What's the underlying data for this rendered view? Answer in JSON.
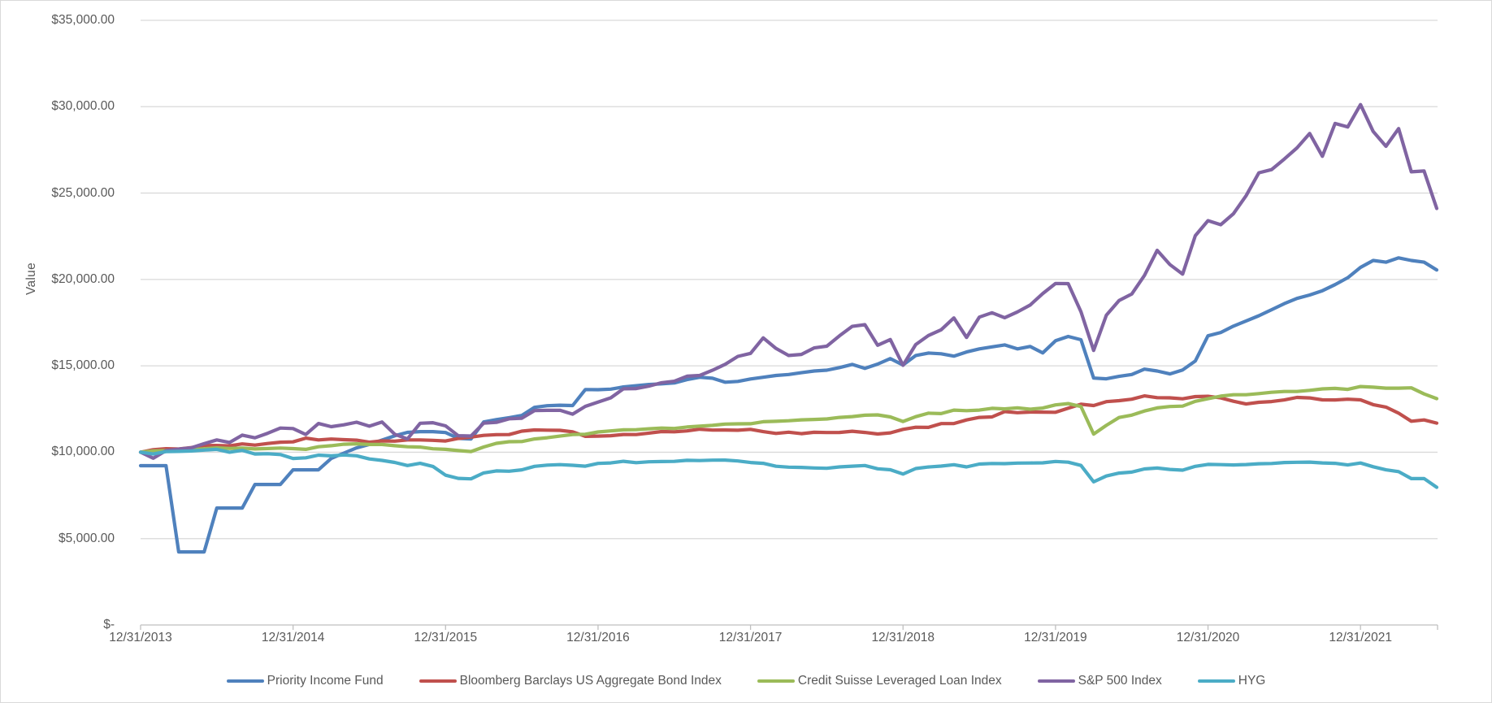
{
  "chart_data": {
    "type": "line",
    "title": "",
    "ylabel": "Value",
    "xlabel": "",
    "grid": true,
    "legend_position": "bottom",
    "ylim": [
      0,
      35000
    ],
    "y_tick_step": 5000,
    "y_tick_labels": [
      "$-",
      "$5,000.00",
      "$10,000.00",
      "$15,000.00",
      "$20,000.00",
      "$25,000.00",
      "$30,000.00",
      "$35,000.00"
    ],
    "x_tick_labels": [
      "12/31/2013",
      "12/31/2014",
      "12/31/2015",
      "12/31/2016",
      "12/31/2017",
      "12/31/2018",
      "12/31/2019",
      "12/31/2020",
      "12/31/2021"
    ],
    "x_frequency": "monthly",
    "x_start": "12/31/2013",
    "x_end": "6/30/2022",
    "colors": {
      "grid": "#d9d9d9",
      "axis": "#bfbfbf",
      "text": "#595959"
    },
    "series": [
      {
        "name": "Priority Income Fund",
        "color": "#4F81BD",
        "values": [
          9220,
          9220,
          9220,
          4230,
          4230,
          4230,
          6770,
          6770,
          6770,
          8135,
          8135,
          8135,
          8980,
          8980,
          8980,
          9640,
          9950,
          10250,
          10450,
          10700,
          10950,
          11150,
          11190,
          11190,
          11140,
          10800,
          10770,
          11750,
          11890,
          12000,
          12130,
          12600,
          12690,
          12720,
          12700,
          13630,
          13620,
          13650,
          13780,
          13850,
          13920,
          13960,
          14010,
          14200,
          14340,
          14280,
          14050,
          14100,
          14240,
          14340,
          14440,
          14500,
          14600,
          14700,
          14750,
          14900,
          15080,
          14850,
          15100,
          15420,
          15050,
          15600,
          15740,
          15700,
          15560,
          15800,
          15980,
          16100,
          16210,
          15980,
          16120,
          15750,
          16450,
          16700,
          16510,
          14290,
          14250,
          14390,
          14500,
          14810,
          14700,
          14530,
          14760,
          15280,
          16740,
          16930,
          17300,
          17600,
          17900,
          18250,
          18600,
          18900,
          19100,
          19350,
          19700,
          20100,
          20700,
          21100,
          21000,
          21250,
          21100,
          21000,
          20550
        ]
      },
      {
        "name": "Bloomberg Barclays US Aggregate Bond Index",
        "color": "#C0504D",
        "values": [
          10000,
          10148,
          10202,
          10185,
          10270,
          10387,
          10392,
          10366,
          10480,
          10409,
          10507,
          10581,
          10597,
          10815,
          10713,
          10763,
          10724,
          10698,
          10582,
          10656,
          10640,
          10712,
          10714,
          10686,
          10652,
          10798,
          10875,
          10975,
          11017,
          11020,
          11218,
          11289,
          11276,
          11269,
          11183,
          10918,
          10934,
          10955,
          11029,
          11023,
          11108,
          11194,
          11183,
          11234,
          11334,
          11280,
          11287,
          11272,
          11324,
          11193,
          11087,
          11158,
          11075,
          11154,
          11140,
          11143,
          11215,
          11143,
          11054,
          11120,
          11325,
          11445,
          11438,
          11658,
          11660,
          11867,
          12016,
          12043,
          12355,
          12289,
          12326,
          12320,
          12312,
          12549,
          12775,
          12700,
          12926,
          12986,
          13068,
          13263,
          13156,
          13149,
          13090,
          13219,
          13237,
          13142,
          12952,
          12791,
          12892,
          12933,
          13024,
          13170,
          13145,
          13031,
          13028,
          13067,
          13033,
          12752,
          12610,
          12260,
          11795,
          11871,
          11685
        ]
      },
      {
        "name": "Credit Suisse Leveraged Loan Index",
        "color": "#9BBB59",
        "values": [
          10000,
          10070,
          10094,
          10119,
          10141,
          10199,
          10253,
          10218,
          10243,
          10189,
          10211,
          10241,
          10206,
          10168,
          10318,
          10380,
          10464,
          10487,
          10446,
          10446,
          10380,
          10316,
          10298,
          10201,
          10167,
          10096,
          10040,
          10304,
          10512,
          10609,
          10618,
          10766,
          10840,
          10935,
          11021,
          11040,
          11171,
          11235,
          11296,
          11305,
          11354,
          11398,
          11377,
          11462,
          11510,
          11555,
          11630,
          11643,
          11646,
          11764,
          11789,
          11822,
          11872,
          11898,
          11927,
          12014,
          12062,
          12141,
          12160,
          12041,
          11779,
          12055,
          12258,
          12235,
          12437,
          12407,
          12436,
          12541,
          12509,
          12569,
          12489,
          12557,
          12741,
          12813,
          12647,
          11052,
          11556,
          12010,
          12148,
          12386,
          12566,
          12645,
          12671,
          12945,
          13095,
          13247,
          13325,
          13325,
          13393,
          13470,
          13516,
          13516,
          13580,
          13667,
          13694,
          13640,
          13802,
          13766,
          13707,
          13707,
          13725,
          13374,
          13100
        ]
      },
      {
        "name": "S&P 500 Index",
        "color": "#8064A2",
        "values": [
          10000,
          9654,
          10096,
          10181,
          10256,
          10497,
          10714,
          10566,
          10989,
          10835,
          11099,
          11398,
          11369,
          11028,
          11662,
          11477,
          11587,
          11736,
          11509,
          11750,
          11041,
          10768,
          11676,
          11711,
          11526,
          10954,
          10939,
          11681,
          11726,
          11937,
          11968,
          12409,
          12426,
          12428,
          12202,
          12654,
          12904,
          13149,
          13671,
          13687,
          13828,
          14022,
          14110,
          14400,
          14444,
          14742,
          15086,
          15549,
          15721,
          16621,
          16008,
          15601,
          15661,
          16038,
          16137,
          16737,
          17283,
          17381,
          16193,
          16523,
          15032,
          16236,
          16758,
          17084,
          17775,
          16646,
          17819,
          18075,
          17789,
          18122,
          18514,
          19186,
          19766,
          19758,
          18131,
          15891,
          17928,
          18782,
          19155,
          20235,
          21689,
          20865,
          20310,
          22533,
          23403,
          23167,
          23806,
          24848,
          26174,
          26357,
          26972,
          27613,
          28452,
          27129,
          29029,
          28828,
          30122,
          28563,
          27708,
          28736,
          26230,
          26278,
          24110
        ]
      },
      {
        "name": "HYG",
        "color": "#4BACC6",
        "values": [
          10000,
          9900,
          10035,
          10047,
          10072,
          10124,
          10166,
          10003,
          10109,
          9900,
          9910,
          9864,
          9638,
          9678,
          9831,
          9791,
          9842,
          9793,
          9613,
          9524,
          9407,
          9232,
          9355,
          9180,
          8672,
          8488,
          8459,
          8804,
          8921,
          8901,
          8982,
          9183,
          9253,
          9283,
          9246,
          9194,
          9354,
          9382,
          9475,
          9396,
          9446,
          9460,
          9470,
          9531,
          9518,
          9542,
          9544,
          9495,
          9406,
          9355,
          9186,
          9134,
          9123,
          9089,
          9070,
          9152,
          9194,
          9231,
          9042,
          8986,
          8738,
          9056,
          9143,
          9195,
          9275,
          9148,
          9314,
          9346,
          9340,
          9370,
          9374,
          9387,
          9466,
          9424,
          9236,
          8285,
          8621,
          8793,
          8851,
          9032,
          9085,
          9005,
          8960,
          9183,
          9297,
          9282,
          9261,
          9284,
          9331,
          9346,
          9402,
          9420,
          9426,
          9382,
          9355,
          9262,
          9375,
          9157,
          8979,
          8875,
          8472,
          8475,
          7971
        ]
      }
    ]
  }
}
